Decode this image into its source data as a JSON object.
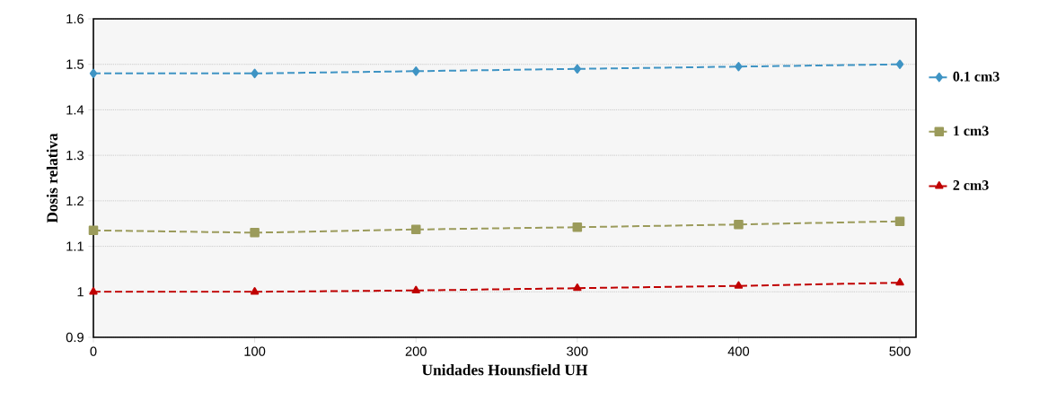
{
  "chart_data": {
    "type": "line",
    "xlabel": "Unidades Hounsfield UH",
    "ylabel": "Dosis relativa",
    "x": [
      0,
      100,
      200,
      300,
      400,
      500
    ],
    "series": [
      {
        "name": "0.1 cm3",
        "color": "#3f94c4",
        "marker": "diamond",
        "values": [
          1.48,
          1.48,
          1.485,
          1.49,
          1.495,
          1.5
        ]
      },
      {
        "name": "1 cm3",
        "color": "#9b9b5b",
        "marker": "square",
        "values": [
          1.135,
          1.13,
          1.137,
          1.142,
          1.148,
          1.155
        ]
      },
      {
        "name": "2 cm3",
        "color": "#c00000",
        "marker": "triangle",
        "values": [
          1.0,
          1.0,
          1.003,
          1.008,
          1.013,
          1.02
        ]
      }
    ],
    "xlim": [
      0,
      510
    ],
    "ylim": [
      0.9,
      1.6
    ],
    "xticks": [
      0,
      100,
      200,
      300,
      400,
      500
    ],
    "yticks": [
      0.9,
      1,
      1.1,
      1.2,
      1.3,
      1.4,
      1.5,
      1.6
    ],
    "grid": "y",
    "legend": "right",
    "line_style": "dashed"
  }
}
